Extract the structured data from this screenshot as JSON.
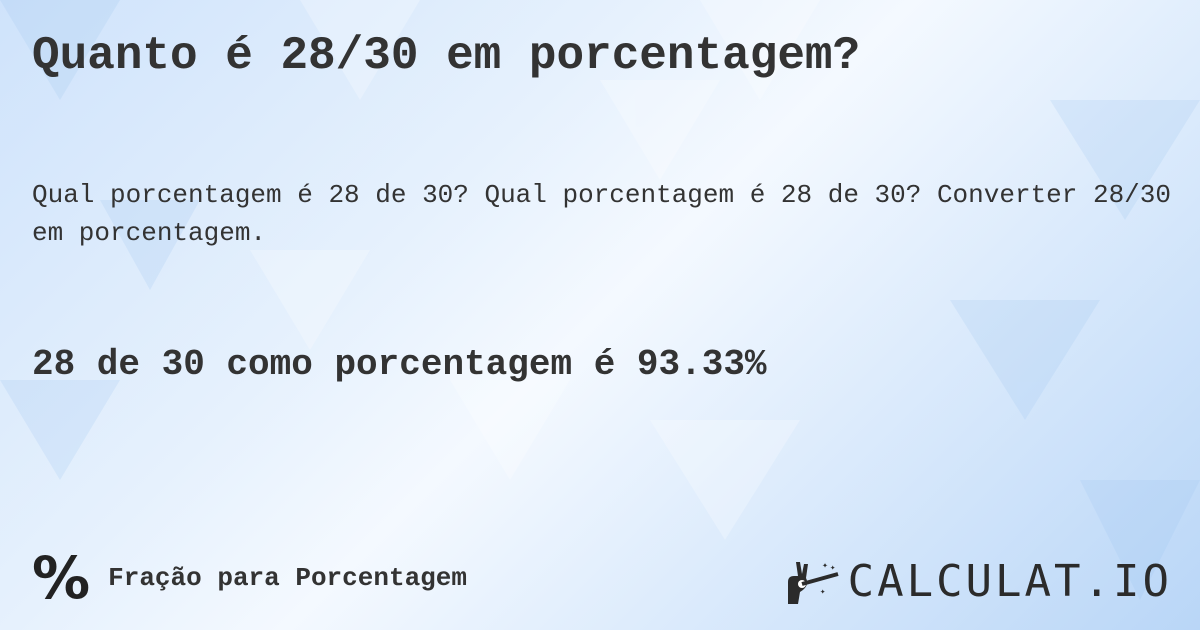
{
  "title": "Quanto é 28/30 em porcentagem?",
  "description": "Qual porcentagem é 28 de 30? Qual porcentagem é 28 de 30? Converter 28/30 em porcentagem.",
  "answer": "28 de 30 como porcentagem é 93.33%",
  "footer": {
    "icon": "percent-icon",
    "icon_glyph": "%",
    "category": "Fração para Porcentagem"
  },
  "logo": {
    "text": "CALCULAT.IO",
    "icon": "magic-hand-icon"
  },
  "colors": {
    "text": "#333333",
    "background": "#dcebfc"
  }
}
